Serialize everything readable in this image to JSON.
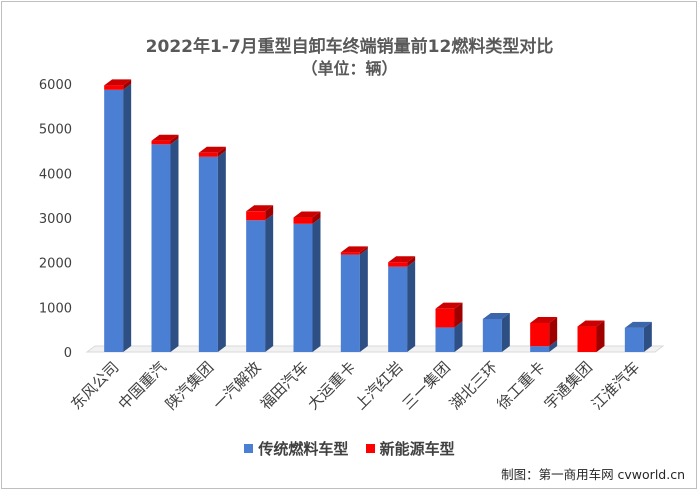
{
  "title": "2022年1-7月重型自卸车终端销量前12燃料类型对比",
  "subtitle": "（单位：辆）",
  "source": "制图：第一商用车网 cvworld.cn",
  "colors": {
    "traditional": "#4a7fd4",
    "new_energy": "#ff0000"
  },
  "chart_data": {
    "type": "bar",
    "stacked": true,
    "categories": [
      "东风公司",
      "中国重汽",
      "陕汽集团",
      "一汽解放",
      "福田汽车",
      "大运重卡",
      "上汽红岩",
      "三一集团",
      "湖北三环",
      "徐工重卡",
      "宇通集团",
      "江淮汽车"
    ],
    "series": [
      {
        "name": "传统燃料车型",
        "values": [
          5870,
          4650,
          4370,
          2950,
          2870,
          2180,
          1910,
          550,
          740,
          130,
          0,
          540
        ]
      },
      {
        "name": "新能源车型",
        "values": [
          100,
          80,
          90,
          200,
          140,
          50,
          100,
          420,
          0,
          520,
          570,
          0
        ]
      }
    ],
    "ylim": [
      0,
      6000
    ],
    "yticks": [
      "0",
      "1000",
      "2000",
      "3000",
      "4000",
      "5000",
      "6000"
    ],
    "grid": false,
    "legend": "bottom"
  }
}
